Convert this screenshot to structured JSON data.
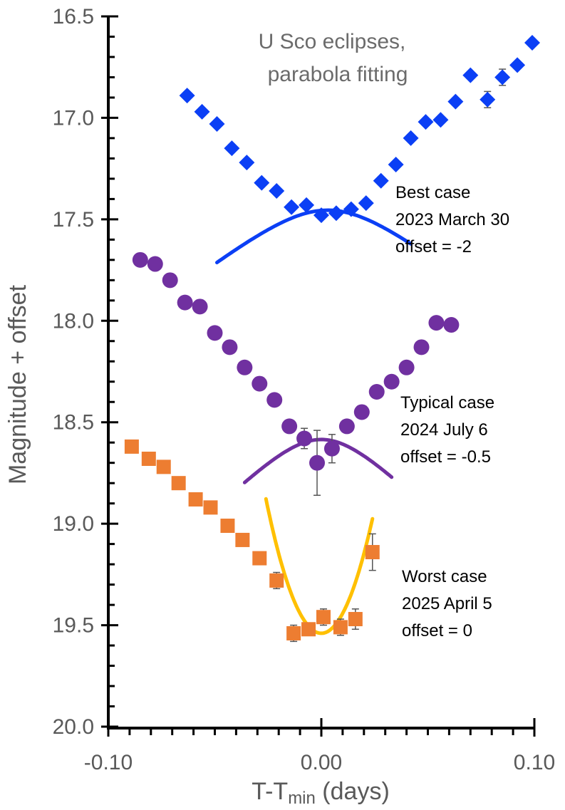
{
  "chart_data": {
    "type": "scatter",
    "title": [
      "U Sco eclipses,",
      "parabola fitting"
    ],
    "xlabel": {
      "pre": "T-T",
      "sub": "min",
      "post": " (days)"
    },
    "ylabel": "Magnitude + offset",
    "xlim": [
      -0.1,
      0.1
    ],
    "ylim": [
      16.5,
      20.0
    ],
    "y_inverted": true,
    "x_ticks": [
      -0.1,
      0.0,
      0.1
    ],
    "x_tick_labels": [
      "-0.10",
      "0.00",
      "0.10"
    ],
    "y_ticks": [
      16.5,
      17.0,
      17.5,
      18.0,
      18.5,
      19.0,
      19.5,
      20.0
    ],
    "y_tick_labels": [
      "16.5",
      "17.0",
      "17.5",
      "18.0",
      "18.5",
      "19.0",
      "19.5",
      "20.0"
    ],
    "y_minor_step": 0.1,
    "x_minor_step": 0.01,
    "grid": false,
    "series": [
      {
        "name": "Best case",
        "annotation": [
          "Best case",
          "2023 March 30",
          "offset = -2"
        ],
        "marker": "diamond",
        "color": "#0b3ff5",
        "fit_color": "#0b3ff5",
        "x": [
          -0.063,
          -0.056,
          -0.049,
          -0.042,
          -0.035,
          -0.028,
          -0.021,
          -0.014,
          -0.007,
          0.0,
          0.007,
          0.014,
          0.021,
          0.028,
          0.035,
          0.042,
          0.049,
          0.056,
          0.063,
          0.07,
          0.078,
          0.085,
          0.092,
          0.099
        ],
        "y": [
          16.89,
          16.97,
          17.03,
          17.15,
          17.22,
          17.32,
          17.36,
          17.44,
          17.43,
          17.48,
          17.47,
          17.45,
          17.42,
          17.31,
          17.23,
          17.1,
          17.02,
          17.01,
          16.92,
          16.79,
          16.91,
          16.8,
          16.74,
          16.63
        ],
        "err": [
          0,
          0,
          0,
          0,
          0,
          0,
          0,
          0,
          0,
          0,
          0,
          0,
          0,
          0,
          0,
          0,
          0,
          0,
          0,
          0,
          0.04,
          0.04,
          0,
          0
        ],
        "fit": {
          "x_range": [
            -0.049,
            0.042
          ],
          "x0": 0.003,
          "m0": 17.455,
          "k": 440,
          "vwidth": 0.028,
          "slope": 8.3
        }
      },
      {
        "name": "Typical case",
        "annotation": [
          "Typical case",
          "2024 July 6",
          "offset = -0.5"
        ],
        "marker": "circle",
        "color": "#7030a0",
        "fit_color": "#7030a0",
        "x": [
          -0.085,
          -0.078,
          -0.071,
          -0.064,
          -0.057,
          -0.05,
          -0.043,
          -0.036,
          -0.029,
          -0.022,
          -0.015,
          -0.008,
          -0.002,
          0.005,
          0.012,
          0.019,
          0.026,
          0.033,
          0.04,
          0.047,
          0.054,
          0.061
        ],
        "y": [
          17.7,
          17.72,
          17.8,
          17.91,
          17.93,
          18.06,
          18.13,
          18.23,
          18.31,
          18.39,
          18.52,
          18.58,
          18.7,
          18.63,
          18.52,
          18.45,
          18.35,
          18.3,
          18.23,
          18.13,
          18.01,
          18.02
        ],
        "err": [
          0,
          0,
          0,
          0,
          0,
          0,
          0,
          0,
          0,
          0,
          0,
          0.05,
          0.16,
          0.07,
          0,
          0,
          0,
          0,
          0,
          0,
          0,
          0
        ],
        "fit": {
          "x_range": [
            -0.036,
            0.033
          ],
          "x0": 0.0,
          "m0": 18.585,
          "k": 500,
          "vwidth": 0.022,
          "slope": 10.5
        }
      },
      {
        "name": "Worst case",
        "annotation": [
          "Worst case",
          "2025 April 5",
          "offset = 0"
        ],
        "marker": "square",
        "color": "#ed7d31",
        "fit_color": "#ffc000",
        "x": [
          -0.089,
          -0.081,
          -0.074,
          -0.067,
          -0.059,
          -0.052,
          -0.044,
          -0.037,
          -0.029,
          -0.021,
          -0.013,
          -0.006,
          0.001,
          0.009,
          0.016,
          0.024
        ],
        "y": [
          18.62,
          18.68,
          18.72,
          18.8,
          18.88,
          18.92,
          19.01,
          19.08,
          19.17,
          19.28,
          19.54,
          19.52,
          19.46,
          19.51,
          19.47,
          19.14
        ],
        "err": [
          0,
          0,
          0,
          0,
          0,
          0,
          0,
          0,
          0,
          0.04,
          0.04,
          0.03,
          0.04,
          0.04,
          0.05,
          0.09
        ],
        "fit": {
          "x_range": [
            -0.026,
            0.024
          ],
          "x0": 0.0,
          "m0": 19.54,
          "k": 980,
          "vwidth": 0.0,
          "slope": 0
        }
      }
    ]
  }
}
